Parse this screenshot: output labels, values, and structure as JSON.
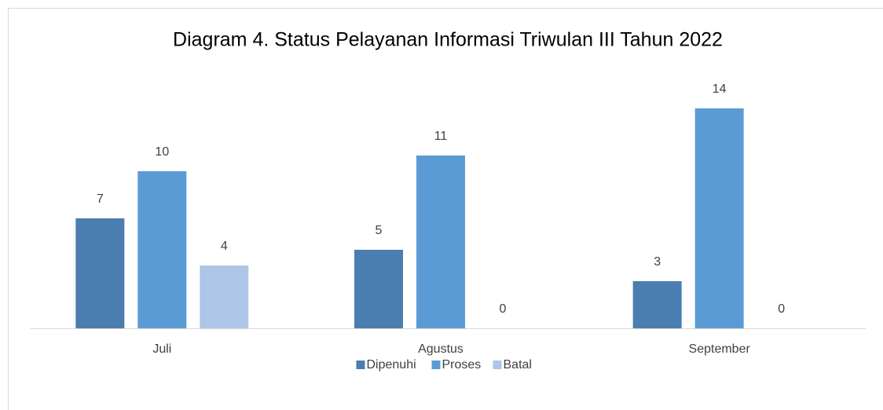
{
  "chart_data": {
    "type": "bar",
    "title": "Diagram 4. Status Pelayanan Informasi Triwulan III Tahun 2022",
    "categories": [
      "Juli",
      "Agustus",
      "September"
    ],
    "series": [
      {
        "name": "Dipenuhi",
        "color": "#4a7eb0",
        "values": [
          7,
          5,
          3
        ]
      },
      {
        "name": "Proses",
        "color": "#5b9bd5",
        "values": [
          10,
          11,
          14
        ]
      },
      {
        "name": "Batal",
        "color": "#adc6e6",
        "values": [
          4,
          0,
          0
        ]
      }
    ],
    "legend": "bottom"
  }
}
